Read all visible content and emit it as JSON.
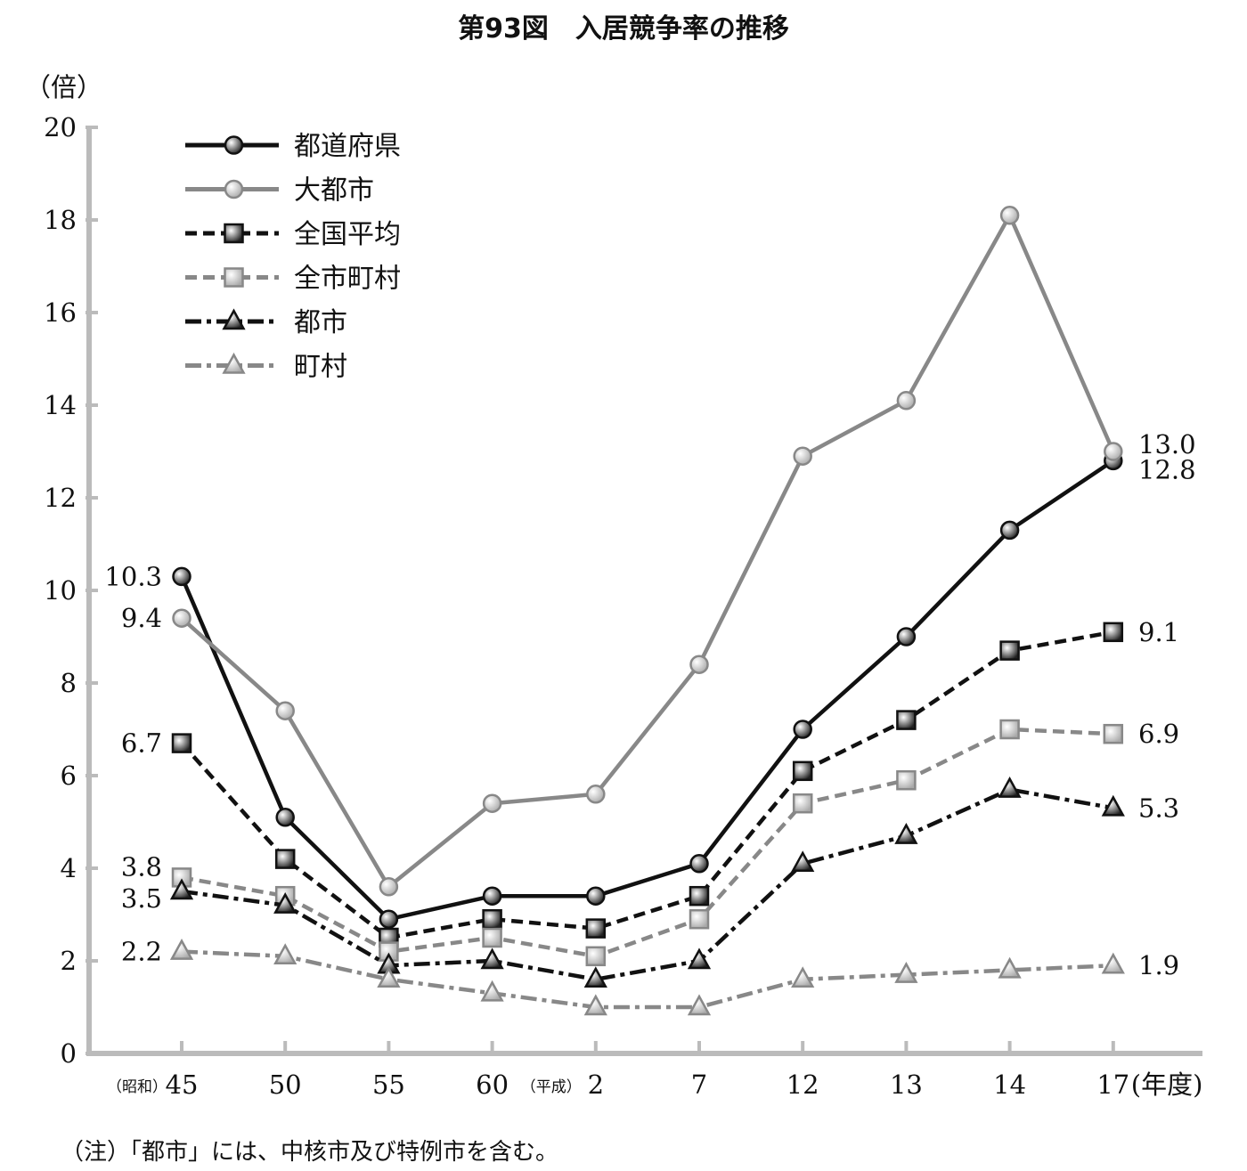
{
  "chart_data": {
    "type": "line",
    "title": "第93図　入居競争率の推移",
    "ylabel": "（倍）",
    "xlabel_suffix": "(年度)",
    "era_labels": [
      {
        "text": "（昭和）",
        "before_index": 0
      },
      {
        "text": "（平成）",
        "before_index": 4
      }
    ],
    "ylim": [
      0,
      20
    ],
    "yticks": [
      0,
      2,
      4,
      6,
      8,
      10,
      12,
      14,
      16,
      18,
      20
    ],
    "categories": [
      "45",
      "50",
      "55",
      "60",
      "2",
      "7",
      "12",
      "13",
      "14",
      "17"
    ],
    "series": [
      {
        "name": "都道府県",
        "values": [
          10.3,
          5.1,
          2.9,
          3.4,
          3.4,
          4.1,
          7.0,
          9.0,
          11.3,
          12.8
        ],
        "color": "#111111",
        "dash": "solid",
        "marker": "circle",
        "markerFill": "#333333"
      },
      {
        "name": "大都市",
        "values": [
          9.4,
          7.4,
          3.6,
          5.4,
          5.6,
          8.4,
          12.9,
          14.1,
          18.1,
          13.0
        ],
        "color": "#888888",
        "dash": "solid",
        "marker": "circle",
        "markerFill": "#d6d6d6"
      },
      {
        "name": "全国平均",
        "values": [
          6.7,
          4.2,
          2.5,
          2.9,
          2.7,
          3.4,
          6.1,
          7.2,
          8.7,
          9.1
        ],
        "color": "#111111",
        "dash": "dash",
        "marker": "square",
        "markerFill": "#444444"
      },
      {
        "name": "全市町村",
        "values": [
          3.8,
          3.4,
          2.2,
          2.5,
          2.1,
          2.9,
          5.4,
          5.9,
          7.0,
          6.9
        ],
        "color": "#888888",
        "dash": "dash",
        "marker": "square",
        "markerFill": "#d0d0d0"
      },
      {
        "name": "都市",
        "values": [
          3.5,
          3.2,
          1.9,
          2.0,
          1.6,
          2.0,
          4.1,
          4.7,
          5.7,
          5.3
        ],
        "color": "#111111",
        "dash": "dashdot",
        "marker": "triangle",
        "markerFill": "#555555"
      },
      {
        "name": "町村",
        "values": [
          2.2,
          2.1,
          1.6,
          1.3,
          1.0,
          1.0,
          1.6,
          1.7,
          1.8,
          1.9
        ],
        "color": "#888888",
        "dash": "dashdot",
        "marker": "triangle",
        "markerFill": "#d8d8d8"
      }
    ],
    "annotations_left": [
      {
        "text": "10.3",
        "value": 10.3
      },
      {
        "text": "9.4",
        "value": 9.4
      },
      {
        "text": "6.7",
        "value": 6.7
      },
      {
        "text": "3.8",
        "value": 3.8
      },
      {
        "text": "3.5",
        "value": 3.5
      },
      {
        "text": "2.2",
        "value": 2.2
      }
    ],
    "annotations_right": [
      {
        "text": "13.0",
        "value": 13.0
      },
      {
        "text": "12.8",
        "value": 12.8
      },
      {
        "text": "9.1",
        "value": 9.1
      },
      {
        "text": "6.9",
        "value": 6.9
      },
      {
        "text": "5.3",
        "value": 5.3
      },
      {
        "text": "1.9",
        "value": 1.9
      }
    ],
    "grid": false,
    "legend_position": "top-left"
  },
  "note": "（注）「都市」には、中核市及び特例市を含む。"
}
